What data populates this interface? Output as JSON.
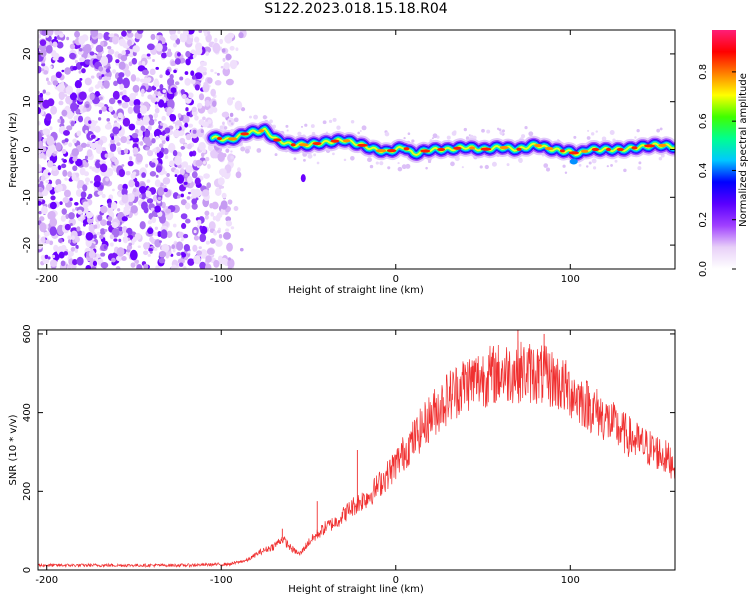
{
  "title": "S122.2023.018.15.18.R04",
  "chart_data": [
    {
      "type": "heatmap",
      "xlabel": "Height of straight line (km)",
      "ylabel": "Frequency (Hz)",
      "xlim": [
        -205,
        160
      ],
      "ylim": [
        -25,
        25
      ],
      "xticks": [
        -200,
        -100,
        0,
        100
      ],
      "yticks": [
        -20,
        -10,
        0,
        10,
        20
      ],
      "colorbar": {
        "label": "Normalized spectral amplitude",
        "range": [
          0,
          0.97
        ],
        "ticks": [
          0.0,
          0.2,
          0.4,
          0.6,
          0.8
        ],
        "tick_labels": [
          "0.0",
          "0.2",
          "0.4",
          "0.6",
          "0.8"
        ],
        "colors": [
          "#ffffff",
          "#e8d0f8",
          "#a040ff",
          "#5a00ff",
          "#0000ff",
          "#00c8ff",
          "#00ff90",
          "#40ff00",
          "#ffff00",
          "#ff8000",
          "#ff0000",
          "#ff1e78"
        ]
      },
      "noise_region": {
        "x_from": -205,
        "x_to": -87,
        "y_from": -25,
        "y_to": 25
      },
      "ridge": {
        "x": [
          -105,
          -95,
          -85,
          -75,
          -68,
          -60,
          -50,
          -40,
          -30,
          -20,
          -12,
          -5,
          0,
          5,
          10,
          15,
          20,
          30,
          40,
          50,
          60,
          70,
          80,
          90,
          100,
          105,
          110,
          120,
          130,
          140,
          150,
          160
        ],
        "y": [
          2.5,
          2.0,
          3.5,
          4.0,
          2.0,
          1.0,
          1.0,
          1.5,
          2.0,
          1.0,
          0.0,
          -0.5,
          0.0,
          0.5,
          -1.0,
          -0.5,
          0.0,
          0.0,
          0.5,
          0.0,
          0.5,
          0.0,
          1.0,
          0.0,
          -0.5,
          -1.0,
          0.0,
          0.0,
          0.0,
          0.5,
          1.0,
          0.5
        ]
      }
    },
    {
      "type": "line",
      "xlabel": "Height of straight line (km)",
      "ylabel": "SNR (10 * v/v)",
      "xlim": [
        -205,
        160
      ],
      "ylim": [
        0,
        610
      ],
      "xticks": [
        -200,
        -100,
        0,
        100
      ],
      "yticks": [
        0,
        200,
        400,
        600
      ],
      "color": "#f03030",
      "series": [
        {
          "x": [
            -205,
            -180,
            -150,
            -120,
            -95,
            -85,
            -78,
            -70,
            -65,
            -60,
            -55,
            -50,
            -45,
            -40,
            -35,
            -30,
            -25,
            -20,
            -15,
            -10,
            -5,
            0,
            10,
            20,
            30,
            40,
            50,
            60,
            70,
            80,
            90,
            100,
            110,
            120,
            130,
            140,
            150,
            160
          ],
          "values": [
            12,
            12,
            12,
            12,
            15,
            25,
            45,
            60,
            80,
            55,
            40,
            70,
            90,
            110,
            120,
            140,
            160,
            175,
            190,
            215,
            240,
            270,
            330,
            390,
            440,
            475,
            490,
            500,
            505,
            500,
            485,
            455,
            420,
            385,
            350,
            320,
            300,
            270
          ]
        }
      ],
      "spikes": [
        {
          "x": -65,
          "y": 105
        },
        {
          "x": -45,
          "y": 175
        },
        {
          "x": -22,
          "y": 305
        },
        {
          "x": 70,
          "y": 610
        },
        {
          "x": 85,
          "y": 600
        }
      ]
    }
  ]
}
